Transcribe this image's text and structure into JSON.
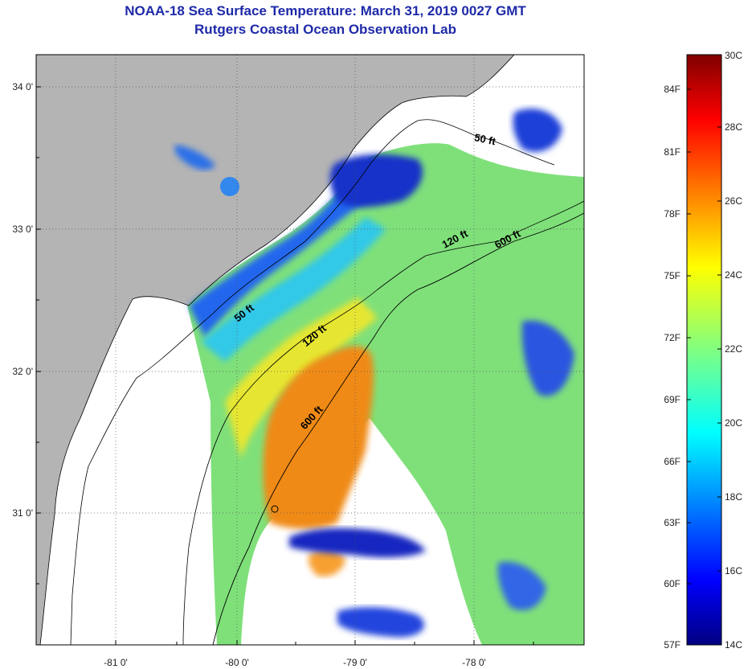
{
  "header": {
    "title": "NOAA-18 Sea Surface Temperature:  March 31, 2019 0027 GMT",
    "subtitle": "Rutgers Coastal Ocean Observation Lab"
  },
  "map": {
    "latitude_labels": [
      "34 0'",
      "33 0'",
      "32 0'",
      "31 0'"
    ],
    "longitude_labels": [
      "-81 0'",
      "-80 0'",
      "-79 0'",
      "-78 0'"
    ],
    "isobath_labels": [
      "50 ft",
      "120 ft",
      "600 ft",
      "50 ft",
      "120 ft",
      "600 ft"
    ],
    "colors": {
      "land": "#b4b4b4",
      "no_data": "#ffffff",
      "frame": "#000000"
    }
  },
  "colorbar": {
    "fahrenheit_labels": [
      "84F",
      "81F",
      "78F",
      "75F",
      "72F",
      "69F",
      "66F",
      "63F",
      "60F",
      "57F"
    ],
    "celsius_labels": [
      "30C",
      "28C",
      "26C",
      "24C",
      "22C",
      "20C",
      "18C",
      "16C",
      "14C"
    ],
    "colormap": "jet"
  }
}
